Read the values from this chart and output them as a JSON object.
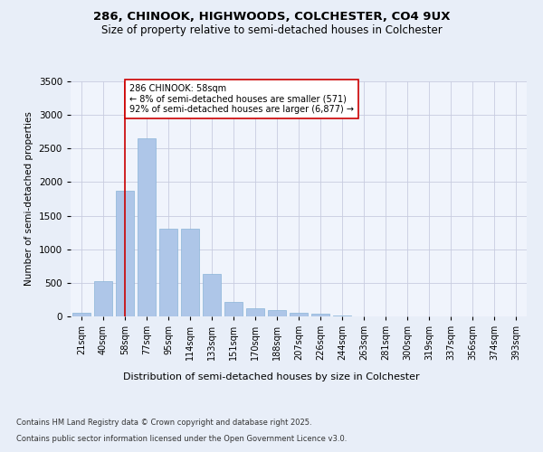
{
  "title1": "286, CHINOOK, HIGHWOODS, COLCHESTER, CO4 9UX",
  "title2": "Size of property relative to semi-detached houses in Colchester",
  "xlabel": "Distribution of semi-detached houses by size in Colchester",
  "ylabel": "Number of semi-detached properties",
  "categories": [
    "21sqm",
    "40sqm",
    "58sqm",
    "77sqm",
    "95sqm",
    "114sqm",
    "133sqm",
    "151sqm",
    "170sqm",
    "188sqm",
    "207sqm",
    "226sqm",
    "244sqm",
    "263sqm",
    "281sqm",
    "300sqm",
    "319sqm",
    "337sqm",
    "356sqm",
    "374sqm",
    "393sqm"
  ],
  "values": [
    60,
    530,
    1870,
    2650,
    1310,
    1310,
    630,
    220,
    120,
    90,
    55,
    35,
    10,
    0,
    0,
    0,
    0,
    0,
    0,
    0,
    0
  ],
  "bar_color": "#aec6e8",
  "bar_edge_color": "#8ab4d8",
  "vline_x_index": 2,
  "vline_color": "#cc0000",
  "annotation_text": "286 CHINOOK: 58sqm\n← 8% of semi-detached houses are smaller (571)\n92% of semi-detached houses are larger (6,877) →",
  "annotation_box_color": "#ffffff",
  "annotation_box_edge_color": "#cc0000",
  "ylim": [
    0,
    3500
  ],
  "yticks": [
    0,
    500,
    1000,
    1500,
    2000,
    2500,
    3000,
    3500
  ],
  "footer1": "Contains HM Land Registry data © Crown copyright and database right 2025.",
  "footer2": "Contains public sector information licensed under the Open Government Licence v3.0.",
  "bg_color": "#e8eef8",
  "plot_bg_color": "#f0f4fc"
}
